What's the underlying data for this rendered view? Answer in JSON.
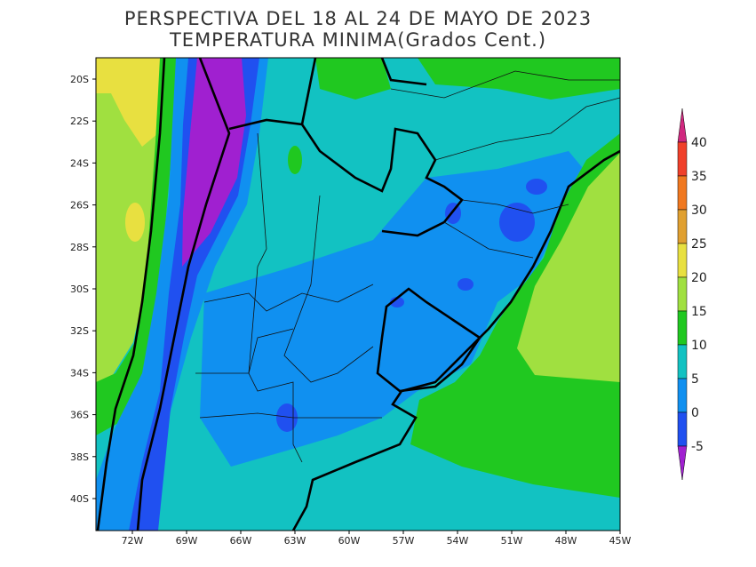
{
  "title": "PERSPECTIVA DEL 18 AL 24 DE MAYO DE 2023",
  "subtitle": "TEMPERATURA MINIMA(Grados Cent.)",
  "latitude_labels": [
    "20S",
    "22S",
    "24S",
    "26S",
    "28S",
    "30S",
    "32S",
    "34S",
    "36S",
    "38S",
    "40S"
  ],
  "longitude_labels": [
    "72W",
    "69W",
    "66W",
    "63W",
    "60W",
    "57W",
    "54W",
    "51W",
    "48W",
    "45W"
  ],
  "colorbar_labels": [
    "40",
    "35",
    "30",
    "25",
    "20",
    "15",
    "10",
    "5",
    "0",
    "-5"
  ]
}
